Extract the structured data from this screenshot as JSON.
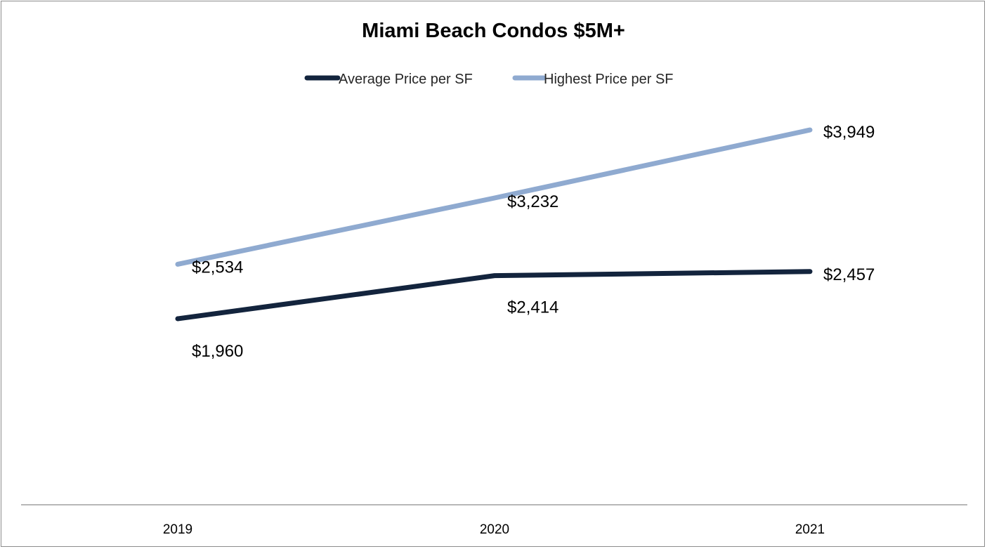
{
  "chart_data": {
    "type": "line",
    "title": "Miami Beach Condos $5M+",
    "categories": [
      "2019",
      "2020",
      "2021"
    ],
    "series": [
      {
        "name": "Average Price per SF",
        "values": [
          1960,
          2414,
          2457
        ],
        "labels": [
          "$1,960",
          "$2,414",
          "$2,457"
        ],
        "color": "#13243d"
      },
      {
        "name": "Highest Price per SF",
        "values": [
          2534,
          3232,
          3949
        ],
        "labels": [
          "$2,534",
          "$3,232",
          "$3,949"
        ],
        "color": "#8faad0"
      }
    ],
    "xlabel": "",
    "ylabel": "",
    "ylim": [
      0,
      5000
    ],
    "grid": false,
    "legend_position": "top"
  }
}
